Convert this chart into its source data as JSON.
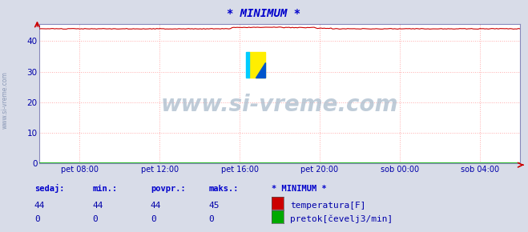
{
  "title": "* MINIMUM *",
  "title_color": "#0000cc",
  "background_color": "#d8dce8",
  "plot_bg_color": "#ffffff",
  "grid_color": "#ffaaaa",
  "grid_linestyle": ":",
  "watermark": "www.si-vreme.com",
  "side_label": "www.si-vreme.com",
  "xticklabels": [
    "pet 08:00",
    "pet 12:00",
    "pet 16:00",
    "pet 20:00",
    "sob 00:00",
    "sob 04:00"
  ],
  "xtick_fractions": [
    0.083,
    0.25,
    0.417,
    0.583,
    0.75,
    0.917
  ],
  "ylim": [
    0,
    45.5
  ],
  "yticks": [
    0,
    10,
    20,
    30,
    40
  ],
  "temp_value": 44,
  "temp_color": "#cc0000",
  "flow_color": "#00aa00",
  "table_headers": [
    "sedaj:",
    "min.:",
    "povpr.:",
    "maks.:"
  ],
  "table_header_color": "#0000cc",
  "legend_title": "* MINIMUM *",
  "legend_title_color": "#0000cc",
  "legend_items": [
    {
      "label": "temperatura[F]",
      "color": "#cc0000"
    },
    {
      "label": "pretok[čevelj3/min]",
      "color": "#00aa00"
    }
  ],
  "temp_row": [
    44,
    44,
    44,
    45
  ],
  "flow_row": [
    0,
    0,
    0,
    0
  ],
  "n_points": 288
}
